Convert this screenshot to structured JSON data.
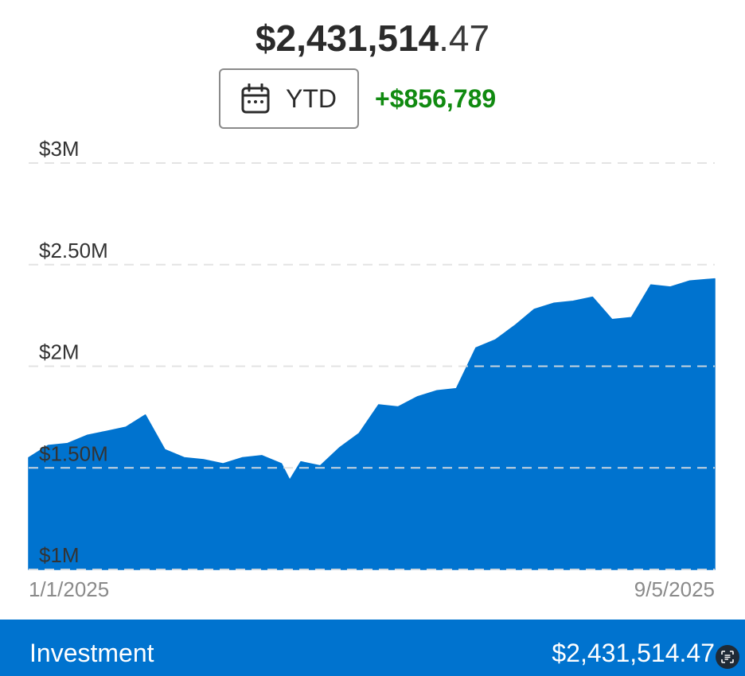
{
  "header": {
    "balance_whole": "$2,431,514",
    "balance_cents": ".47",
    "period_label": "YTD",
    "change": "+$856,789"
  },
  "colors": {
    "accent": "#0073cf",
    "positive": "#108a10",
    "text": "#2b2b2b"
  },
  "icons": {
    "period": "calendar-icon",
    "footer": "scan-text-icon"
  },
  "chart_data": {
    "type": "area",
    "y_tick_labels": [
      "$3M",
      "$2.50M",
      "$2M",
      "$1.50M",
      "$1M"
    ],
    "y_ticks": [
      3000000,
      2500000,
      2000000,
      1500000,
      1000000
    ],
    "ylim": [
      1000000,
      3000000
    ],
    "x_tick_labels": [
      "1/1/2025",
      "9/5/2025"
    ],
    "grid": "dashed-horizontal",
    "series": [
      {
        "x": [
          "2025-01-01",
          "2025-01-08",
          "2025-01-15",
          "2025-01-22",
          "2025-01-29",
          "2025-02-05",
          "2025-02-12",
          "2025-02-19",
          "2025-02-26",
          "2025-03-05",
          "2025-03-12",
          "2025-03-19",
          "2025-03-26",
          "2025-04-02",
          "2025-04-05",
          "2025-04-09",
          "2025-04-16",
          "2025-04-23",
          "2025-04-30",
          "2025-05-07",
          "2025-05-14",
          "2025-05-21",
          "2025-05-28",
          "2025-06-04",
          "2025-06-11",
          "2025-06-18",
          "2025-06-25",
          "2025-07-02",
          "2025-07-09",
          "2025-07-16",
          "2025-07-23",
          "2025-07-30",
          "2025-08-06",
          "2025-08-13",
          "2025-08-20",
          "2025-08-27",
          "2025-09-05"
        ],
        "values": [
          1550000,
          1610000,
          1620000,
          1660000,
          1680000,
          1700000,
          1760000,
          1590000,
          1550000,
          1540000,
          1520000,
          1550000,
          1560000,
          1520000,
          1440000,
          1530000,
          1510000,
          1600000,
          1670000,
          1810000,
          1800000,
          1850000,
          1880000,
          1890000,
          2090000,
          2130000,
          2200000,
          2280000,
          2310000,
          2320000,
          2340000,
          2230000,
          2240000,
          2400000,
          2390000,
          2420000,
          2430000
        ]
      }
    ]
  },
  "footer": {
    "label": "Investment",
    "value": "$2,431,514.47"
  }
}
